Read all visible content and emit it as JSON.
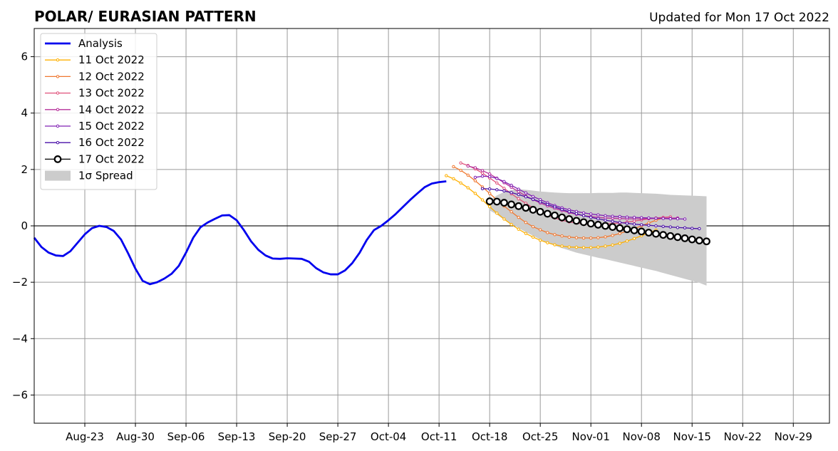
{
  "title": "POLAR/ EURASIAN  PATTERN",
  "subtitle": "Updated for Mon 17 Oct 2022",
  "chart_data": {
    "type": "line",
    "xlabel": "",
    "ylabel": "",
    "xlim": [
      "2022-08-16",
      "2022-12-04"
    ],
    "ylim": [
      -7,
      7
    ],
    "yticks": [
      -6,
      -4,
      -2,
      0,
      2,
      4,
      6
    ],
    "ytick_labels": [
      "−6",
      "−4",
      "−2",
      "0",
      "2",
      "4",
      "6"
    ],
    "xticks": [
      "2022-08-23",
      "2022-08-30",
      "2022-09-06",
      "2022-09-13",
      "2022-09-20",
      "2022-09-27",
      "2022-10-04",
      "2022-10-11",
      "2022-10-18",
      "2022-10-25",
      "2022-11-01",
      "2022-11-08",
      "2022-11-15",
      "2022-11-22",
      "2022-11-29"
    ],
    "xtick_labels": [
      "Aug-23",
      "Aug-30",
      "Sep-06",
      "Sep-13",
      "Sep-20",
      "Sep-27",
      "Oct-04",
      "Oct-11",
      "Oct-18",
      "Oct-25",
      "Nov-01",
      "Nov-08",
      "Nov-15",
      "Nov-22",
      "Nov-29"
    ],
    "grid": true,
    "legend_position": "top-left",
    "legend": [
      "Analysis",
      "11 Oct 2022",
      "12 Oct 2022",
      "13 Oct 2022",
      "14 Oct 2022",
      "15 Oct 2022",
      "16 Oct 2022",
      "17 Oct 2022",
      "1σ Spread"
    ],
    "series": [
      {
        "name": "Analysis",
        "color": "#0000ee",
        "style": "line",
        "start": "2022-08-16",
        "values": [
          -0.42,
          -0.75,
          -0.95,
          -1.05,
          -1.07,
          -0.9,
          -0.6,
          -0.3,
          -0.08,
          0.0,
          -0.04,
          -0.18,
          -0.48,
          -0.98,
          -1.52,
          -1.95,
          -2.07,
          -2.0,
          -1.87,
          -1.7,
          -1.42,
          -0.95,
          -0.42,
          -0.05,
          0.12,
          0.25,
          0.37,
          0.38,
          0.2,
          -0.15,
          -0.55,
          -0.85,
          -1.05,
          -1.16,
          -1.17,
          -1.15,
          -1.16,
          -1.17,
          -1.27,
          -1.5,
          -1.65,
          -1.72,
          -1.72,
          -1.58,
          -1.32,
          -0.96,
          -0.5,
          -0.15,
          0.0,
          0.2,
          0.42,
          0.67,
          0.92,
          1.15,
          1.37,
          1.5,
          1.55,
          1.58
        ]
      },
      {
        "name": "11 Oct 2022",
        "color": "#ffb000",
        "style": "small",
        "start": "2022-10-12",
        "values": [
          1.78,
          1.67,
          1.52,
          1.35,
          1.15,
          0.92,
          0.68,
          0.45,
          0.24,
          0.05,
          -0.12,
          -0.27,
          -0.4,
          -0.51,
          -0.6,
          -0.67,
          -0.72,
          -0.75,
          -0.76,
          -0.77,
          -0.77,
          -0.75,
          -0.72,
          -0.68,
          -0.62,
          -0.54,
          -0.45,
          -0.35,
          -0.25,
          -0.15
        ]
      },
      {
        "name": "12 Oct 2022",
        "color": "#f07830",
        "style": "small",
        "start": "2022-10-13",
        "values": [
          2.1,
          1.97,
          1.8,
          1.6,
          1.38,
          1.15,
          0.92,
          0.7,
          0.5,
          0.3,
          0.12,
          -0.03,
          -0.14,
          -0.24,
          -0.31,
          -0.36,
          -0.4,
          -0.42,
          -0.43,
          -0.43,
          -0.42,
          -0.39,
          -0.34,
          -0.27,
          -0.19,
          -0.1,
          0.0,
          0.1,
          0.2,
          0.28
        ]
      },
      {
        "name": "13 Oct 2022",
        "color": "#e0507a",
        "style": "small",
        "start": "2022-10-14",
        "values": [
          2.23,
          2.14,
          2.02,
          1.87,
          1.7,
          1.52,
          1.33,
          1.14,
          0.96,
          0.8,
          0.64,
          0.5,
          0.38,
          0.28,
          0.2,
          0.14,
          0.1,
          0.07,
          0.05,
          0.05,
          0.06,
          0.08,
          0.1,
          0.13,
          0.17,
          0.21,
          0.25,
          0.28,
          0.3,
          0.32
        ]
      },
      {
        "name": "14 Oct 2022",
        "color": "#b6309a",
        "style": "small",
        "start": "2022-10-15",
        "values": [
          2.12,
          2.06,
          1.96,
          1.84,
          1.69,
          1.53,
          1.37,
          1.21,
          1.06,
          0.93,
          0.81,
          0.71,
          0.62,
          0.54,
          0.47,
          0.41,
          0.36,
          0.33,
          0.3,
          0.28,
          0.27,
          0.26,
          0.25,
          0.25,
          0.25,
          0.26,
          0.26,
          0.27,
          0.27,
          0.28
        ]
      },
      {
        "name": "15 Oct 2022",
        "color": "#8020b4",
        "style": "small",
        "start": "2022-10-16",
        "values": [
          1.72,
          1.76,
          1.75,
          1.68,
          1.57,
          1.44,
          1.3,
          1.17,
          1.04,
          0.93,
          0.82,
          0.72,
          0.64,
          0.57,
          0.51,
          0.46,
          0.42,
          0.39,
          0.36,
          0.34,
          0.33,
          0.31,
          0.3,
          0.29,
          0.28,
          0.27,
          0.26,
          0.25,
          0.25,
          0.24
        ]
      },
      {
        "name": "16 Oct 2022",
        "color": "#4a10a8",
        "style": "small",
        "start": "2022-10-17",
        "values": [
          1.32,
          1.31,
          1.28,
          1.24,
          1.18,
          1.11,
          1.03,
          0.94,
          0.85,
          0.76,
          0.67,
          0.58,
          0.5,
          0.43,
          0.36,
          0.3,
          0.25,
          0.2,
          0.16,
          0.12,
          0.09,
          0.06,
          0.04,
          0.02,
          0.0,
          -0.02,
          -0.04,
          -0.06,
          -0.07,
          -0.09,
          -0.1
        ]
      },
      {
        "name": "17 Oct 2022",
        "color": "#000000",
        "style": "big",
        "start": "2022-10-18",
        "values": [
          0.87,
          0.86,
          0.82,
          0.76,
          0.7,
          0.64,
          0.57,
          0.5,
          0.43,
          0.37,
          0.3,
          0.24,
          0.18,
          0.13,
          0.08,
          0.04,
          0.0,
          -0.04,
          -0.08,
          -0.12,
          -0.16,
          -0.2,
          -0.24,
          -0.28,
          -0.32,
          -0.36,
          -0.4,
          -0.44,
          -0.48,
          -0.52,
          -0.55
        ]
      }
    ],
    "spread": {
      "name": "1σ Spread",
      "color": "#cccccc",
      "start": "2022-10-18",
      "upper": [
        0.9,
        1.08,
        1.2,
        1.27,
        1.3,
        1.28,
        1.25,
        1.22,
        1.2,
        1.18,
        1.17,
        1.16,
        1.16,
        1.16,
        1.16,
        1.17,
        1.17,
        1.17,
        1.18,
        1.18,
        1.17,
        1.16,
        1.15,
        1.14,
        1.12,
        1.1,
        1.09,
        1.08,
        1.07,
        1.06,
        1.05
      ],
      "lower": [
        0.55,
        0.4,
        0.22,
        0.07,
        -0.08,
        -0.22,
        -0.35,
        -0.48,
        -0.6,
        -0.7,
        -0.79,
        -0.87,
        -0.95,
        -1.01,
        -1.07,
        -1.13,
        -1.18,
        -1.24,
        -1.3,
        -1.36,
        -1.42,
        -1.48,
        -1.54,
        -1.6,
        -1.67,
        -1.74,
        -1.81,
        -1.88,
        -1.95,
        -2.02,
        -2.12
      ]
    }
  }
}
